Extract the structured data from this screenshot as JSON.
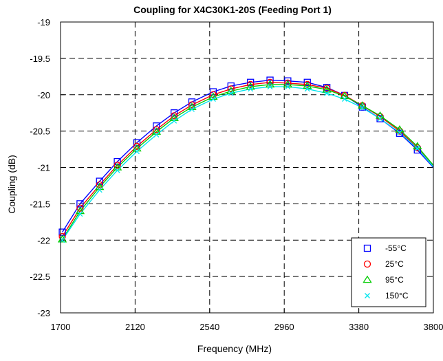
{
  "chart_data": {
    "type": "line",
    "title": "Coupling for X4C30K1-20S (Feeding Port 1)",
    "xlabel": "Frequency (MHz)",
    "ylabel": "Coupling (dB)",
    "xlim": [
      1700,
      3800
    ],
    "ylim": [
      -23,
      -19
    ],
    "xticks": [
      1700,
      2120,
      2540,
      2960,
      3380,
      3800
    ],
    "yticks": [
      -19,
      -19.5,
      -20,
      -20.5,
      -21,
      -21.5,
      -22,
      -22.5,
      -23
    ],
    "grid": true,
    "legend_position": "bottom-right",
    "x": [
      1710,
      1810,
      1920,
      2020,
      2130,
      2240,
      2340,
      2440,
      2560,
      2660,
      2770,
      2880,
      2980,
      3090,
      3200,
      3300,
      3400,
      3500,
      3610,
      3710,
      3800
    ],
    "series": [
      {
        "name": "-55°C",
        "marker": "square",
        "color": "#0000ff",
        "values": [
          -21.89,
          -21.5,
          -21.19,
          -20.92,
          -20.66,
          -20.43,
          -20.25,
          -20.1,
          -19.96,
          -19.88,
          -19.83,
          -19.8,
          -19.81,
          -19.83,
          -19.9,
          -20.01,
          -20.17,
          -20.33,
          -20.53,
          -20.76,
          -21.0
        ]
      },
      {
        "name": "25°C",
        "marker": "circle",
        "color": "#ff0000",
        "values": [
          -21.95,
          -21.56,
          -21.24,
          -20.97,
          -20.71,
          -20.48,
          -20.29,
          -20.14,
          -20.0,
          -19.92,
          -19.86,
          -19.83,
          -19.84,
          -19.86,
          -19.91,
          -20.01,
          -20.15,
          -20.3,
          -20.5,
          -20.73,
          -20.98
        ]
      },
      {
        "name": "95°C",
        "marker": "triangle",
        "color": "#00cc00",
        "values": [
          -21.99,
          -21.6,
          -21.27,
          -21.0,
          -20.74,
          -20.51,
          -20.32,
          -20.17,
          -20.03,
          -19.95,
          -19.89,
          -19.86,
          -19.86,
          -19.88,
          -19.93,
          -20.02,
          -20.15,
          -20.29,
          -20.48,
          -20.71,
          -20.97
        ]
      },
      {
        "name": "150°C",
        "marker": "x",
        "color": "#00e5ee",
        "values": [
          -22.0,
          -21.64,
          -21.31,
          -21.04,
          -20.78,
          -20.55,
          -20.36,
          -20.2,
          -20.06,
          -19.98,
          -19.92,
          -19.89,
          -19.89,
          -19.92,
          -19.98,
          -20.06,
          -20.18,
          -20.33,
          -20.52,
          -20.74,
          -20.99
        ]
      }
    ]
  }
}
